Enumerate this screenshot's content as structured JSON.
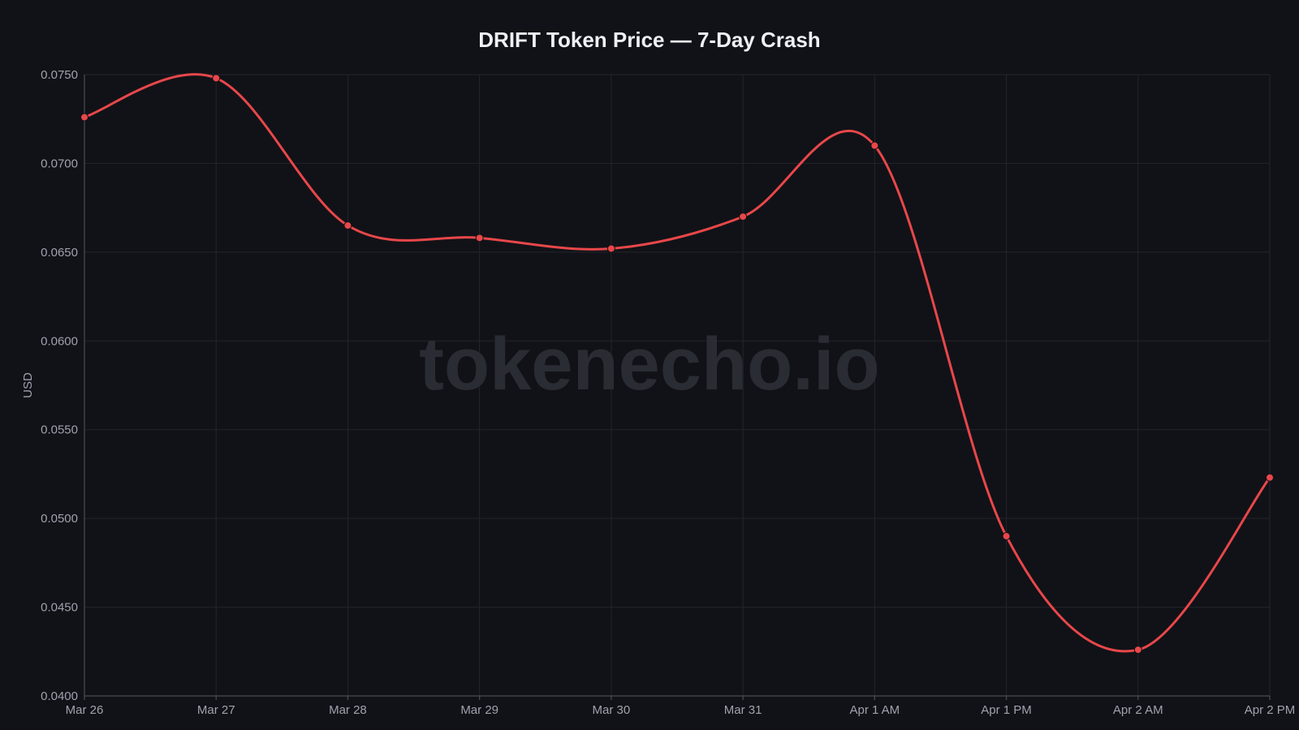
{
  "watermark": "tokenecho.io",
  "chart_data": {
    "type": "line",
    "title": "DRIFT Token Price — 7-Day Crash",
    "xlabel": "",
    "ylabel": "USD",
    "categories": [
      "Mar 26",
      "Mar 27",
      "Mar 28",
      "Mar 29",
      "Mar 30",
      "Mar 31",
      "Apr 1 AM",
      "Apr 1 PM",
      "Apr 2 AM",
      "Apr 2 PM"
    ],
    "series": [
      {
        "name": "",
        "values": [
          0.0726,
          0.0748,
          0.0665,
          0.0658,
          0.0652,
          0.067,
          0.071,
          0.049,
          0.0426,
          0.0523
        ]
      }
    ],
    "ylim": [
      0.04,
      0.075
    ],
    "yticks": [
      "0.0400",
      "0.0450",
      "0.0500",
      "0.0550",
      "0.0600",
      "0.0650",
      "0.0700",
      "0.0750"
    ],
    "grid": true,
    "line_color": "#e8474a",
    "background": "#111217"
  }
}
